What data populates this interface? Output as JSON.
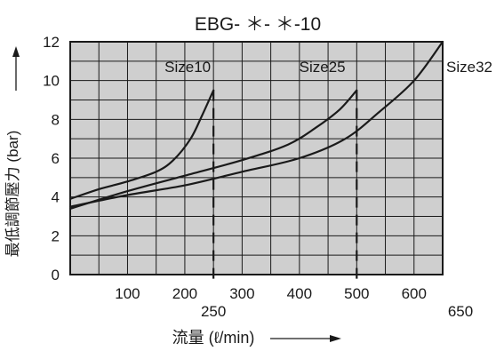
{
  "chart_data": {
    "type": "line",
    "title": "EBG- ＊- ＊-10",
    "xlabel": "流量 (ℓ/min)",
    "ylabel": "最低調節壓力 (bar)",
    "xlim": [
      0,
      650
    ],
    "ylim": [
      0,
      12
    ],
    "x_ticks": [
      100,
      200,
      300,
      400,
      500,
      600
    ],
    "x_ticks_extra": [
      250,
      650
    ],
    "x_tick_labels": [
      "100",
      "200",
      "300",
      "400",
      "500",
      "600"
    ],
    "x_extra_labels": [
      "250",
      "650"
    ],
    "y_ticks": [
      0,
      2,
      4,
      6,
      8,
      10,
      12
    ],
    "y_tick_labels": [
      "0",
      "2",
      "4",
      "6",
      "8",
      "10",
      "12"
    ],
    "grid": true,
    "grid_minor_x_step": 50,
    "grid_minor_y_step": 1,
    "colors": {
      "plot_bg": "#cfcfcf",
      "grid": "#1a1a1a",
      "curve": "#1a1a1a",
      "text": "#1a1a1a"
    },
    "series": [
      {
        "name": "Size10",
        "x": [
          0,
          50,
          100,
          150,
          180,
          210,
          230,
          250
        ],
        "y": [
          3.9,
          4.4,
          4.8,
          5.3,
          5.9,
          7.0,
          8.2,
          9.5
        ],
        "max_flow": 250
      },
      {
        "name": "Size25",
        "x": [
          0,
          100,
          200,
          300,
          380,
          430,
          470,
          500
        ],
        "y": [
          3.4,
          4.3,
          5.1,
          5.9,
          6.7,
          7.6,
          8.5,
          9.5
        ],
        "max_flow": 500
      },
      {
        "name": "Size32",
        "x": [
          0,
          100,
          200,
          300,
          400,
          480,
          540,
          600,
          650
        ],
        "y": [
          3.5,
          4.1,
          4.6,
          5.3,
          6.0,
          7.0,
          8.4,
          10.0,
          12.0
        ],
        "max_flow": 650
      }
    ]
  }
}
